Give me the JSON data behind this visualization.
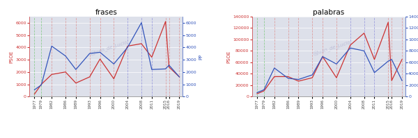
{
  "years": [
    1977,
    1979,
    1982,
    1986,
    1989,
    1993,
    1996,
    2000,
    2004,
    2008,
    2011,
    2015,
    2016,
    2019
  ],
  "frases_psoe": [
    200,
    1000,
    1800,
    2000,
    1100,
    1600,
    3050,
    1450,
    4100,
    4300,
    3200,
    6100,
    2400,
    1600
  ],
  "frases_pp": [
    550,
    950,
    4100,
    3300,
    2200,
    3500,
    3600,
    2650,
    4000,
    6000,
    2200,
    2250,
    2550,
    1600
  ],
  "palabras_psoe": [
    5000,
    10000,
    35000,
    35000,
    27000,
    33000,
    70000,
    33000,
    90000,
    111000,
    65000,
    130000,
    28000,
    65000
  ],
  "palabras_pp": [
    7000,
    12000,
    50000,
    32000,
    30000,
    38000,
    70000,
    57000,
    85000,
    80000,
    42000,
    62000,
    65000,
    28000
  ],
  "title1": "frases",
  "title2": "palabras",
  "ylabel_left": "PSOE",
  "ylabel_right": "PP",
  "watermark": "@Juan_de_Lucio",
  "bg_color": "#dde0ea",
  "line_color_red": "#cc3333",
  "line_color_blue": "#3355bb",
  "frases_ylim": [
    0,
    6500
  ],
  "palabras_ylim": [
    0,
    140000
  ],
  "green_vlines": [
    1977,
    1979
  ],
  "red_vlines": [
    1982,
    1986,
    1989,
    1993,
    1996,
    2000,
    2015,
    2016,
    2019
  ],
  "blue_vlines": [
    2004,
    2008,
    2011
  ],
  "xtick_years": [
    1977,
    1979,
    1982,
    1986,
    1989,
    1993,
    1996,
    2000,
    2004,
    2008,
    2011,
    2015,
    2016,
    2019
  ]
}
